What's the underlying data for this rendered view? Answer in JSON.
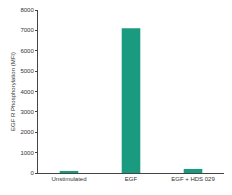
{
  "chart_data": {
    "type": "bar",
    "y_label": "EGF R Phosphorylation (MFI)",
    "categories": [
      "Unstimulated",
      "EGF",
      "EGF + HDS 029"
    ],
    "values": [
      100,
      7100,
      200
    ],
    "color": "#1a9b80",
    "ylim": [
      0,
      8000
    ],
    "yticks": [
      0,
      1000,
      2000,
      3000,
      4000,
      5000,
      6000,
      7000,
      8000
    ],
    "grid": false
  }
}
